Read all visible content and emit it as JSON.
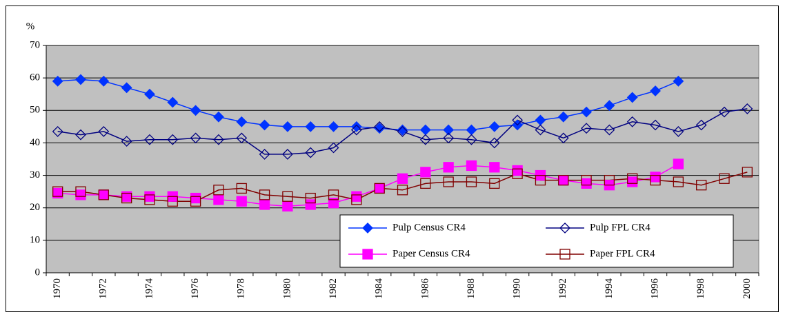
{
  "chart_data": {
    "type": "line",
    "y_label": "%",
    "categories": [
      "1970",
      null,
      "1972",
      null,
      "1974",
      null,
      "1976",
      null,
      "1978",
      null,
      "1980",
      null,
      "1982",
      null,
      "1984",
      null,
      "1986",
      null,
      "1988",
      null,
      "1990",
      null,
      "1992",
      null,
      "1994",
      null,
      "1996",
      null,
      "1998",
      null,
      "2000"
    ],
    "ylim": [
      0,
      70
    ],
    "yticks": [
      0,
      10,
      20,
      30,
      40,
      50,
      60,
      70
    ],
    "grid": true,
    "plot_background": "#c0c0c0",
    "legend_position": "lower right",
    "series": [
      {
        "name": "Pulp Census CR4",
        "color": "#0033ff",
        "marker": "diamond",
        "filled": true,
        "values": [
          59,
          59.5,
          59,
          57,
          55,
          52.5,
          50,
          48,
          46.5,
          45.5,
          45,
          45,
          45,
          45,
          44.5,
          44,
          44,
          44,
          44,
          45,
          45.5,
          47,
          48,
          49.5,
          51.5,
          54,
          56,
          59,
          null,
          null,
          null
        ]
      },
      {
        "name": "Pulp FPL CR4",
        "color": "#000080",
        "marker": "diamond",
        "filled": false,
        "values": [
          43.5,
          42.5,
          43.5,
          40.5,
          41,
          41,
          41.5,
          41,
          41.5,
          36.5,
          36.5,
          37,
          38.5,
          44,
          45,
          43.5,
          41,
          41.5,
          41,
          40,
          47,
          44,
          41.5,
          44.5,
          44,
          46.5,
          45.5,
          43.5,
          45.5,
          49.5,
          50.5
        ]
      },
      {
        "name": "Paper Census CR4",
        "color": "#ff00ff",
        "marker": "square",
        "filled": true,
        "values": [
          24.5,
          24,
          24,
          23.5,
          23.5,
          23.5,
          23,
          22.5,
          22,
          21,
          20.5,
          21,
          21.5,
          23.5,
          26,
          29,
          31,
          32.5,
          33,
          32.5,
          31.5,
          30,
          28.5,
          27.5,
          27,
          28,
          29.5,
          33.5,
          null,
          null,
          null
        ]
      },
      {
        "name": "Paper FPL CR4",
        "color": "#800000",
        "marker": "square",
        "filled": false,
        "values": [
          25,
          25,
          24,
          23,
          22.5,
          22,
          22,
          25.5,
          26,
          24,
          23.5,
          23,
          24,
          22.5,
          26,
          25.5,
          27.5,
          28,
          28,
          27.5,
          30.5,
          28.5,
          28.5,
          28.5,
          28.5,
          29,
          28.5,
          28,
          27,
          29,
          31
        ]
      }
    ]
  }
}
